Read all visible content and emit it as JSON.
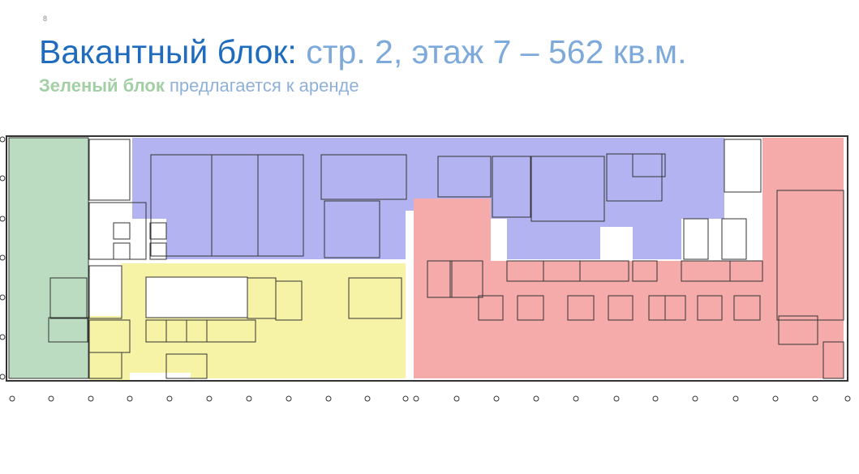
{
  "slide": {
    "page_number": "8",
    "title_main": "Вакантный блок:",
    "title_detail": "стр. 2, этаж 7 – 562 кв.м.",
    "subtitle_highlight": "Зеленый блок",
    "subtitle_rest": "предлагается к аренде"
  },
  "floor_plan": {
    "zones": [
      {
        "name": "green-block",
        "color": "#bcdcc1",
        "status": "offered for rent"
      },
      {
        "name": "blue-block",
        "color": "#b3b3f2"
      },
      {
        "name": "yellow-block",
        "color": "#f7f3a6"
      },
      {
        "name": "red-block",
        "color": "#f6abab"
      }
    ],
    "colors": {
      "title": "#1f6cbf",
      "title_detail": "#7ea9db",
      "highlight": "#a2cfa4",
      "subtitle": "#8fb0d8"
    }
  }
}
